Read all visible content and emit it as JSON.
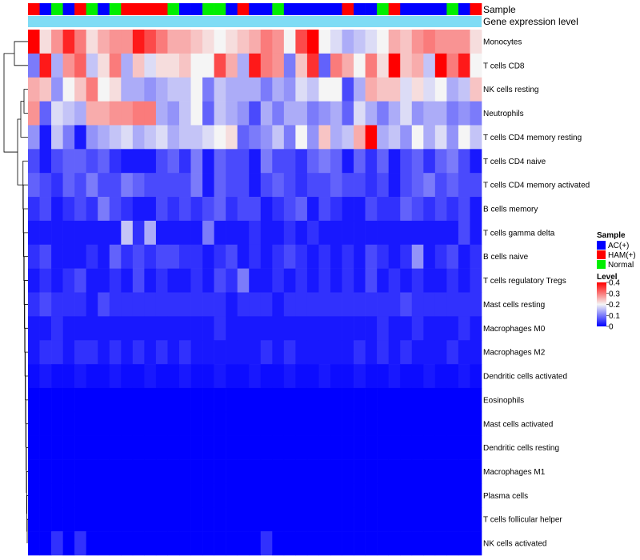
{
  "chart_data": {
    "type": "heatmap",
    "annotation_tracks": [
      {
        "name": "Sample",
        "label": "Sample"
      },
      {
        "name": "Gene expression level",
        "label": "Gene expression level"
      }
    ],
    "rows": [
      "Monocytes",
      "T cells CD8",
      "NK cells resting",
      "Neutrophils",
      "T cells CD4 memory resting",
      "T cells CD4 naive",
      "T cells CD4 memory activated",
      "B cells memory",
      "T cells gamma delta",
      "B cells naive",
      "T cells regulatory  Tregs",
      "Mast cells resting",
      "Macrophages M0",
      "Macrophages M2",
      "Dendritic cells activated",
      "Eosinophils",
      "Mast cells activated",
      "Dendritic cells resting",
      "Macrophages M1",
      "Plasma cells",
      "T cells follicular helper",
      "NK cells activated"
    ],
    "sample_groups": [
      "HAM(+)",
      "AC(+)",
      "Normal",
      "AC(+)",
      "HAM(+)",
      "Normal",
      "AC(+)",
      "Normal",
      "HAM(+)",
      "HAM(+)",
      "HAM(+)",
      "HAM(+)",
      "Normal",
      "AC(+)",
      "AC(+)",
      "Normal",
      "Normal",
      "AC(+)",
      "HAM(+)",
      "AC(+)",
      "AC(+)",
      "Normal",
      "AC(+)",
      "AC(+)",
      "AC(+)",
      "AC(+)",
      "AC(+)",
      "HAM(+)",
      "AC(+)",
      "AC(+)",
      "Normal",
      "HAM(+)",
      "AC(+)",
      "AC(+)",
      "AC(+)",
      "AC(+)",
      "Normal",
      "AC(+)",
      "HAM(+)"
    ],
    "values": [
      [
        0.4,
        0.22,
        0.28,
        0.37,
        0.3,
        0.22,
        0.26,
        0.28,
        0.28,
        0.38,
        0.34,
        0.3,
        0.26,
        0.26,
        0.24,
        0.22,
        0.2,
        0.22,
        0.24,
        0.26,
        0.3,
        0.28,
        0.2,
        0.34,
        0.4,
        0.2,
        0.18,
        0.14,
        0.16,
        0.18,
        0.2,
        0.26,
        0.24,
        0.28,
        0.3,
        0.28,
        0.28,
        0.28,
        0.22
      ],
      [
        0.1,
        0.38,
        0.14,
        0.28,
        0.32,
        0.16,
        0.22,
        0.3,
        0.14,
        0.24,
        0.18,
        0.22,
        0.22,
        0.24,
        0.2,
        0.2,
        0.34,
        0.26,
        0.14,
        0.38,
        0.3,
        0.28,
        0.1,
        0.24,
        0.36,
        0.08,
        0.3,
        0.26,
        0.2,
        0.3,
        0.22,
        0.4,
        0.24,
        0.26,
        0.16,
        0.4,
        0.3,
        0.38,
        0.2
      ],
      [
        0.26,
        0.24,
        0.12,
        0.2,
        0.24,
        0.3,
        0.2,
        0.22,
        0.14,
        0.14,
        0.12,
        0.14,
        0.16,
        0.16,
        0.2,
        0.1,
        0.16,
        0.14,
        0.14,
        0.14,
        0.1,
        0.14,
        0.12,
        0.18,
        0.16,
        0.2,
        0.2,
        0.06,
        0.14,
        0.26,
        0.24,
        0.24,
        0.18,
        0.22,
        0.18,
        0.2,
        0.14,
        0.16,
        0.24
      ],
      [
        0.28,
        0.08,
        0.18,
        0.16,
        0.14,
        0.26,
        0.26,
        0.28,
        0.28,
        0.3,
        0.3,
        0.14,
        0.12,
        0.16,
        0.2,
        0.08,
        0.16,
        0.14,
        0.12,
        0.06,
        0.14,
        0.1,
        0.14,
        0.14,
        0.1,
        0.12,
        0.14,
        0.08,
        0.18,
        0.14,
        0.1,
        0.14,
        0.18,
        0.12,
        0.14,
        0.14,
        0.1,
        0.12,
        0.1
      ],
      [
        0.12,
        0.02,
        0.16,
        0.1,
        0.02,
        0.12,
        0.14,
        0.16,
        0.18,
        0.14,
        0.16,
        0.18,
        0.14,
        0.16,
        0.16,
        0.18,
        0.2,
        0.22,
        0.08,
        0.1,
        0.12,
        0.16,
        0.1,
        0.2,
        0.12,
        0.24,
        0.14,
        0.16,
        0.26,
        0.4,
        0.14,
        0.16,
        0.12,
        0.2,
        0.14,
        0.18,
        0.12,
        0.2,
        0.16
      ],
      [
        0.06,
        0.02,
        0.06,
        0.08,
        0.08,
        0.06,
        0.08,
        0.04,
        0.02,
        0.02,
        0.02,
        0.06,
        0.08,
        0.04,
        0.1,
        0.02,
        0.08,
        0.06,
        0.06,
        0.02,
        0.1,
        0.06,
        0.06,
        0.04,
        0.08,
        0.1,
        0.08,
        0.02,
        0.08,
        0.04,
        0.08,
        0.02,
        0.06,
        0.08,
        0.04,
        0.08,
        0.1,
        0.06,
        0.02
      ],
      [
        0.08,
        0.06,
        0.04,
        0.08,
        0.06,
        0.1,
        0.06,
        0.06,
        0.1,
        0.08,
        0.06,
        0.06,
        0.06,
        0.06,
        0.1,
        0.02,
        0.08,
        0.06,
        0.06,
        0.02,
        0.06,
        0.08,
        0.06,
        0.04,
        0.06,
        0.06,
        0.08,
        0.06,
        0.06,
        0.04,
        0.06,
        0.02,
        0.06,
        0.08,
        0.1,
        0.06,
        0.08,
        0.06,
        0.06
      ],
      [
        0.04,
        0.06,
        0.02,
        0.04,
        0.06,
        0.04,
        0.1,
        0.06,
        0.04,
        0.02,
        0.02,
        0.06,
        0.04,
        0.06,
        0.04,
        0.06,
        0.08,
        0.04,
        0.06,
        0.06,
        0.02,
        0.04,
        0.06,
        0.08,
        0.02,
        0.06,
        0.04,
        0.02,
        0.02,
        0.06,
        0.04,
        0.04,
        0.08,
        0.06,
        0.04,
        0.06,
        0.04,
        0.06,
        0.02
      ],
      [
        0.02,
        0.02,
        0.02,
        0.02,
        0.02,
        0.02,
        0.02,
        0.02,
        0.16,
        0.04,
        0.14,
        0.02,
        0.02,
        0.02,
        0.02,
        0.1,
        0.02,
        0.02,
        0.02,
        0.04,
        0.02,
        0.02,
        0.04,
        0.02,
        0.04,
        0.02,
        0.02,
        0.02,
        0.02,
        0.02,
        0.02,
        0.02,
        0.02,
        0.02,
        0.02,
        0.02,
        0.02,
        0.06,
        0.02
      ],
      [
        0.04,
        0.06,
        0.02,
        0.02,
        0.02,
        0.04,
        0.02,
        0.08,
        0.04,
        0.06,
        0.04,
        0.06,
        0.06,
        0.04,
        0.04,
        0.02,
        0.04,
        0.06,
        0.02,
        0.04,
        0.02,
        0.04,
        0.06,
        0.04,
        0.02,
        0.04,
        0.02,
        0.04,
        0.02,
        0.06,
        0.04,
        0.02,
        0.04,
        0.12,
        0.02,
        0.04,
        0.06,
        0.02,
        0.04
      ],
      [
        0.02,
        0.04,
        0.02,
        0.04,
        0.06,
        0.02,
        0.02,
        0.04,
        0.02,
        0.06,
        0.02,
        0.04,
        0.02,
        0.02,
        0.04,
        0.02,
        0.06,
        0.04,
        0.1,
        0.02,
        0.02,
        0.04,
        0.02,
        0.04,
        0.02,
        0.04,
        0.02,
        0.04,
        0.02,
        0.06,
        0.02,
        0.04,
        0.02,
        0.04,
        0.02,
        0.02,
        0.04,
        0.02,
        0.04
      ],
      [
        0.04,
        0.06,
        0.04,
        0.04,
        0.04,
        0.02,
        0.06,
        0.04,
        0.04,
        0.04,
        0.04,
        0.04,
        0.04,
        0.04,
        0.04,
        0.04,
        0.04,
        0.02,
        0.04,
        0.04,
        0.04,
        0.02,
        0.04,
        0.04,
        0.04,
        0.04,
        0.04,
        0.04,
        0.04,
        0.04,
        0.04,
        0.04,
        0.06,
        0.04,
        0.04,
        0.04,
        0.04,
        0.04,
        0.04
      ],
      [
        0.02,
        0.02,
        0.04,
        0.02,
        0.02,
        0.02,
        0.02,
        0.02,
        0.02,
        0.02,
        0.02,
        0.02,
        0.02,
        0.02,
        0.02,
        0.02,
        0.04,
        0.02,
        0.02,
        0.02,
        0.02,
        0.02,
        0.02,
        0.02,
        0.02,
        0.02,
        0.02,
        0.02,
        0.02,
        0.02,
        0.04,
        0.02,
        0.02,
        0.04,
        0.02,
        0.02,
        0.02,
        0.04,
        0.02
      ],
      [
        0.02,
        0.04,
        0.04,
        0.02,
        0.04,
        0.04,
        0.02,
        0.04,
        0.02,
        0.04,
        0.02,
        0.04,
        0.02,
        0.04,
        0.02,
        0.02,
        0.02,
        0.02,
        0.02,
        0.02,
        0.04,
        0.02,
        0.04,
        0.02,
        0.02,
        0.02,
        0.02,
        0.02,
        0.04,
        0.02,
        0.04,
        0.02,
        0.04,
        0.02,
        0.02,
        0.02,
        0.04,
        0.02,
        0.02
      ],
      [
        0.01,
        0.02,
        0.01,
        0.01,
        0.02,
        0.01,
        0.01,
        0.02,
        0.01,
        0.01,
        0.02,
        0.01,
        0.01,
        0.02,
        0.01,
        0.01,
        0.02,
        0.01,
        0.01,
        0.02,
        0.01,
        0.01,
        0.02,
        0.01,
        0.01,
        0.02,
        0.01,
        0.01,
        0.02,
        0.01,
        0.01,
        0.02,
        0.01,
        0.01,
        0.02,
        0.01,
        0.01,
        0.02,
        0.01
      ],
      [
        0,
        0,
        0,
        0,
        0,
        0,
        0,
        0,
        0,
        0,
        0,
        0,
        0,
        0,
        0,
        0,
        0,
        0,
        0,
        0,
        0,
        0,
        0,
        0,
        0,
        0,
        0,
        0,
        0,
        0,
        0,
        0,
        0,
        0,
        0,
        0,
        0,
        0,
        0
      ],
      [
        0,
        0,
        0,
        0,
        0,
        0,
        0,
        0,
        0,
        0,
        0,
        0,
        0,
        0,
        0,
        0,
        0,
        0,
        0,
        0,
        0,
        0,
        0,
        0,
        0,
        0,
        0,
        0,
        0,
        0,
        0,
        0,
        0,
        0,
        0,
        0,
        0,
        0,
        0
      ],
      [
        0,
        0,
        0,
        0,
        0,
        0,
        0,
        0,
        0,
        0,
        0,
        0,
        0,
        0,
        0,
        0,
        0,
        0,
        0,
        0,
        0,
        0,
        0,
        0,
        0,
        0,
        0,
        0,
        0,
        0,
        0,
        0,
        0,
        0,
        0,
        0,
        0,
        0,
        0
      ],
      [
        0,
        0,
        0,
        0,
        0,
        0,
        0,
        0,
        0,
        0,
        0,
        0,
        0,
        0,
        0,
        0,
        0,
        0,
        0,
        0,
        0,
        0,
        0,
        0,
        0,
        0,
        0,
        0,
        0,
        0,
        0,
        0,
        0,
        0,
        0,
        0,
        0,
        0,
        0
      ],
      [
        0,
        0,
        0,
        0,
        0,
        0,
        0,
        0,
        0,
        0,
        0,
        0,
        0,
        0,
        0,
        0,
        0,
        0,
        0,
        0,
        0,
        0,
        0,
        0,
        0,
        0,
        0,
        0,
        0,
        0,
        0,
        0,
        0,
        0,
        0,
        0,
        0,
        0,
        0
      ],
      [
        0,
        0,
        0,
        0,
        0,
        0,
        0,
        0,
        0,
        0,
        0,
        0,
        0,
        0,
        0,
        0,
        0,
        0,
        0,
        0,
        0,
        0,
        0,
        0,
        0,
        0,
        0,
        0,
        0,
        0,
        0,
        0,
        0,
        0,
        0,
        0,
        0,
        0,
        0
      ],
      [
        0,
        0,
        0.04,
        0,
        0.04,
        0,
        0,
        0,
        0,
        0,
        0,
        0,
        0,
        0,
        0,
        0,
        0,
        0,
        0,
        0,
        0.04,
        0,
        0,
        0,
        0,
        0,
        0,
        0,
        0,
        0,
        0,
        0,
        0,
        0,
        0,
        0,
        0,
        0,
        0
      ]
    ],
    "color_scale": {
      "min": 0,
      "max": 0.4,
      "low": "#0000ff",
      "mid": "#f5f5f5",
      "high": "#ff0000"
    },
    "legends": {
      "sample": {
        "title": "Sample",
        "entries": [
          {
            "label": "AC(+)",
            "color": "#0000ff"
          },
          {
            "label": "HAM(+)",
            "color": "#ff0000"
          },
          {
            "label": "Normal",
            "color": "#00ee00"
          }
        ]
      },
      "level": {
        "title": "Level",
        "ticks": [
          "0.4",
          "0.3",
          "0.2",
          "0.1",
          "0"
        ],
        "tick_values": [
          0.4,
          0.3,
          0.2,
          0.1,
          0
        ]
      }
    },
    "gene_expression_color": "#7fdcf5"
  }
}
